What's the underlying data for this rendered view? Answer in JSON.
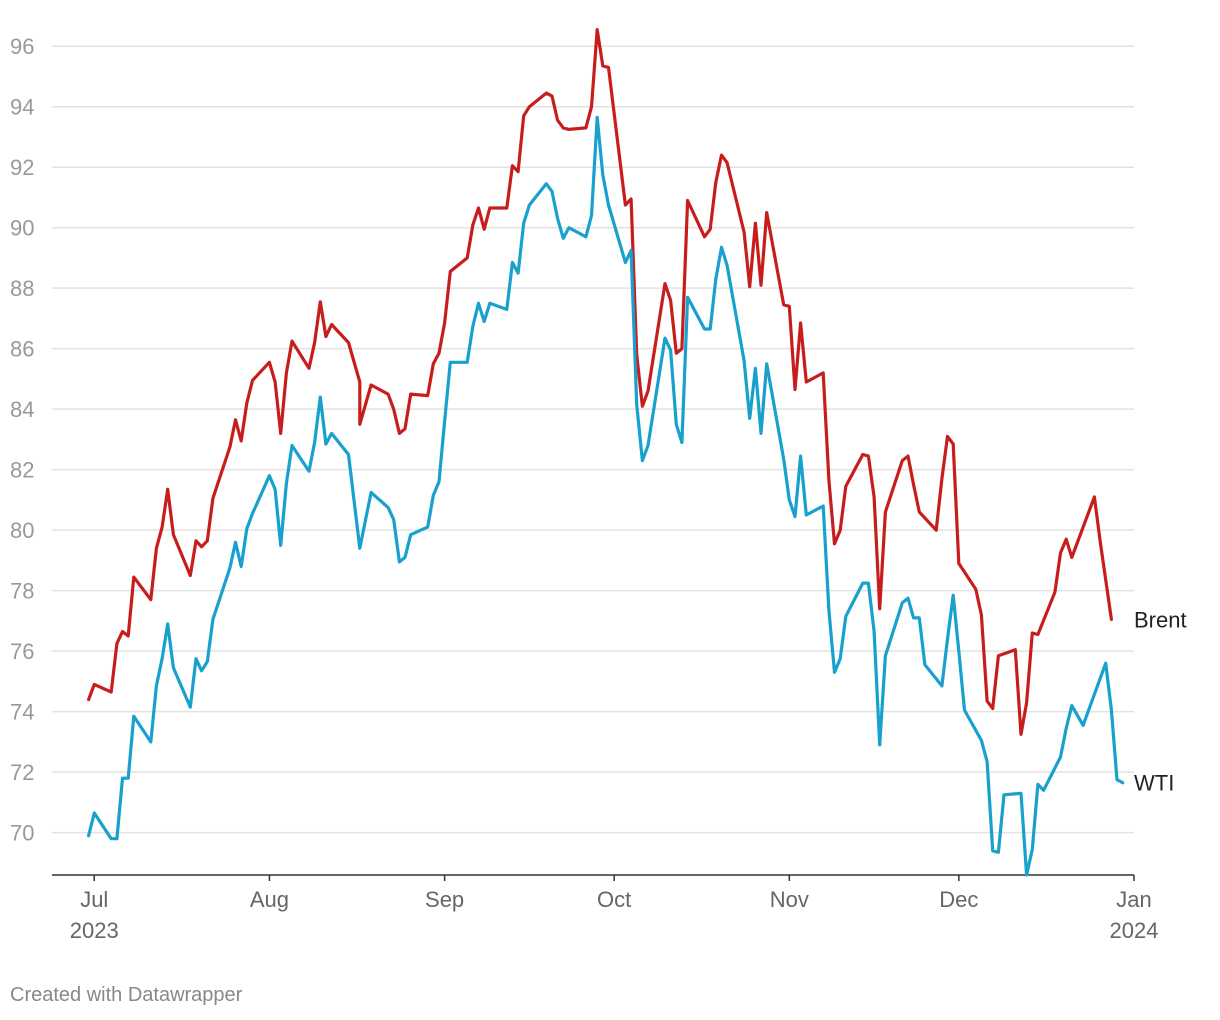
{
  "credit": "Created with Datawrapper",
  "chart_data": {
    "type": "line",
    "title": "",
    "xlabel": "",
    "ylabel": "",
    "xlim": [
      "2023-06-26",
      "2024-01-01"
    ],
    "ylim": [
      68.6,
      96.8
    ],
    "y_ticks": [
      70,
      72,
      74,
      76,
      78,
      80,
      82,
      84,
      86,
      88,
      90,
      92,
      94,
      96
    ],
    "x_ticks": [
      {
        "date": "2023-07-01",
        "label": "Jul",
        "sublabel": "2023"
      },
      {
        "date": "2023-08-01",
        "label": "Aug",
        "sublabel": ""
      },
      {
        "date": "2023-09-01",
        "label": "Sep",
        "sublabel": ""
      },
      {
        "date": "2023-10-01",
        "label": "Oct",
        "sublabel": ""
      },
      {
        "date": "2023-11-01",
        "label": "Nov",
        "sublabel": ""
      },
      {
        "date": "2023-12-01",
        "label": "Dec",
        "sublabel": ""
      },
      {
        "date": "2024-01-01",
        "label": "Jan",
        "sublabel": "2024"
      }
    ],
    "grid": true,
    "legend": "direct-labels-right",
    "series": [
      {
        "name": "Brent",
        "color": "#c71e1d",
        "points": [
          [
            "2023-06-30",
            74.4
          ],
          [
            "2023-07-01",
            74.9
          ],
          [
            "2023-07-04",
            74.65
          ],
          [
            "2023-07-05",
            76.25
          ],
          [
            "2023-07-06",
            76.65
          ],
          [
            "2023-07-07",
            76.5
          ],
          [
            "2023-07-08",
            78.45
          ],
          [
            "2023-07-11",
            77.7
          ],
          [
            "2023-07-12",
            79.4
          ],
          [
            "2023-07-13",
            80.1
          ],
          [
            "2023-07-14",
            81.35
          ],
          [
            "2023-07-15",
            79.85
          ],
          [
            "2023-07-18",
            78.5
          ],
          [
            "2023-07-19",
            79.65
          ],
          [
            "2023-07-20",
            79.45
          ],
          [
            "2023-07-21",
            79.65
          ],
          [
            "2023-07-22",
            81.05
          ],
          [
            "2023-07-25",
            82.75
          ],
          [
            "2023-07-26",
            83.65
          ],
          [
            "2023-07-27",
            82.95
          ],
          [
            "2023-07-28",
            84.2
          ],
          [
            "2023-07-29",
            84.95
          ],
          [
            "2023-08-01",
            85.55
          ],
          [
            "2023-08-02",
            84.9
          ],
          [
            "2023-08-03",
            83.2
          ],
          [
            "2023-08-04",
            85.2
          ],
          [
            "2023-08-05",
            86.25
          ],
          [
            "2023-08-08",
            85.35
          ],
          [
            "2023-08-09",
            86.2
          ],
          [
            "2023-08-10",
            87.55
          ],
          [
            "2023-08-11",
            86.4
          ],
          [
            "2023-08-12",
            86.8
          ],
          [
            "2023-08-15",
            86.2
          ],
          [
            "2023-08-17",
            84.9
          ],
          [
            "2023-08-17",
            83.5
          ],
          [
            "2023-08-19",
            84.8
          ],
          [
            "2023-08-22",
            84.5
          ],
          [
            "2023-08-23",
            84.0
          ],
          [
            "2023-08-24",
            83.2
          ],
          [
            "2023-08-25",
            83.35
          ],
          [
            "2023-08-26",
            84.5
          ],
          [
            "2023-08-29",
            84.45
          ],
          [
            "2023-08-30",
            85.5
          ],
          [
            "2023-08-31",
            85.85
          ],
          [
            "2023-09-01",
            86.85
          ],
          [
            "2023-09-02",
            88.55
          ],
          [
            "2023-09-05",
            89.0
          ],
          [
            "2023-09-06",
            90.1
          ],
          [
            "2023-09-07",
            90.65
          ],
          [
            "2023-09-08",
            89.95
          ],
          [
            "2023-09-09",
            90.65
          ],
          [
            "2023-09-12",
            90.65
          ],
          [
            "2023-09-13",
            92.05
          ],
          [
            "2023-09-14",
            91.85
          ],
          [
            "2023-09-15",
            93.7
          ],
          [
            "2023-09-16",
            94.0
          ],
          [
            "2023-09-19",
            94.45
          ],
          [
            "2023-09-20",
            94.35
          ],
          [
            "2023-09-21",
            93.55
          ],
          [
            "2023-09-22",
            93.3
          ],
          [
            "2023-09-23",
            93.25
          ],
          [
            "2023-09-26",
            93.3
          ],
          [
            "2023-09-27",
            94.0
          ],
          [
            "2023-09-28",
            96.55
          ],
          [
            "2023-09-29",
            95.35
          ],
          [
            "2023-09-30",
            95.3
          ],
          [
            "2023-10-03",
            90.75
          ],
          [
            "2023-10-04",
            90.95
          ],
          [
            "2023-10-05",
            85.8
          ],
          [
            "2023-10-06",
            84.1
          ],
          [
            "2023-10-07",
            84.6
          ],
          [
            "2023-10-10",
            88.15
          ],
          [
            "2023-10-11",
            87.6
          ],
          [
            "2023-10-12",
            85.85
          ],
          [
            "2023-10-13",
            86.0
          ],
          [
            "2023-10-14",
            90.9
          ],
          [
            "2023-10-17",
            89.7
          ],
          [
            "2023-10-18",
            89.95
          ],
          [
            "2023-10-19",
            91.5
          ],
          [
            "2023-10-20",
            92.4
          ],
          [
            "2023-10-21",
            92.15
          ],
          [
            "2023-10-24",
            89.85
          ],
          [
            "2023-10-25",
            88.05
          ],
          [
            "2023-10-26",
            90.15
          ],
          [
            "2023-10-27",
            88.1
          ],
          [
            "2023-10-28",
            90.5
          ],
          [
            "2023-10-31",
            87.45
          ],
          [
            "2023-11-01",
            87.4
          ],
          [
            "2023-11-02",
            84.65
          ],
          [
            "2023-11-03",
            86.85
          ],
          [
            "2023-11-04",
            84.9
          ],
          [
            "2023-11-07",
            85.2
          ],
          [
            "2023-11-08",
            81.65
          ],
          [
            "2023-11-09",
            79.55
          ],
          [
            "2023-11-10",
            80.0
          ],
          [
            "2023-11-11",
            81.45
          ],
          [
            "2023-11-14",
            82.5
          ],
          [
            "2023-11-15",
            82.45
          ],
          [
            "2023-11-16",
            81.1
          ],
          [
            "2023-11-17",
            77.4
          ],
          [
            "2023-11-18",
            80.6
          ],
          [
            "2023-11-21",
            82.3
          ],
          [
            "2023-11-22",
            82.45
          ],
          [
            "2023-11-23",
            81.5
          ],
          [
            "2023-11-24",
            80.6
          ],
          [
            "2023-11-27",
            80.0
          ],
          [
            "2023-11-28",
            81.7
          ],
          [
            "2023-11-29",
            83.1
          ],
          [
            "2023-11-30",
            82.85
          ],
          [
            "2023-12-01",
            78.9
          ],
          [
            "2023-12-04",
            78.05
          ],
          [
            "2023-12-05",
            77.2
          ],
          [
            "2023-12-06",
            74.35
          ],
          [
            "2023-12-07",
            74.1
          ],
          [
            "2023-12-08",
            75.85
          ],
          [
            "2023-12-11",
            76.05
          ],
          [
            "2023-12-12",
            73.25
          ],
          [
            "2023-12-13",
            74.3
          ],
          [
            "2023-12-14",
            76.6
          ],
          [
            "2023-12-15",
            76.55
          ],
          [
            "2023-12-18",
            77.95
          ],
          [
            "2023-12-19",
            79.25
          ],
          [
            "2023-12-20",
            79.7
          ],
          [
            "2023-12-21",
            79.1
          ],
          [
            "2023-12-25",
            81.1
          ],
          [
            "2023-12-26",
            79.65
          ],
          [
            "2023-12-28",
            77.05
          ]
        ]
      },
      {
        "name": "WTI",
        "color": "#18a1cd",
        "points": [
          [
            "2023-06-30",
            69.9
          ],
          [
            "2023-07-01",
            70.65
          ],
          [
            "2023-07-04",
            69.8
          ],
          [
            "2023-07-05",
            69.8
          ],
          [
            "2023-07-06",
            71.8
          ],
          [
            "2023-07-07",
            71.8
          ],
          [
            "2023-07-08",
            73.85
          ],
          [
            "2023-07-11",
            73.0
          ],
          [
            "2023-07-12",
            74.85
          ],
          [
            "2023-07-13",
            75.75
          ],
          [
            "2023-07-14",
            76.9
          ],
          [
            "2023-07-15",
            75.45
          ],
          [
            "2023-07-18",
            74.15
          ],
          [
            "2023-07-19",
            75.75
          ],
          [
            "2023-07-20",
            75.35
          ],
          [
            "2023-07-21",
            75.65
          ],
          [
            "2023-07-22",
            77.05
          ],
          [
            "2023-07-25",
            78.75
          ],
          [
            "2023-07-26",
            79.6
          ],
          [
            "2023-07-27",
            78.8
          ],
          [
            "2023-07-28",
            80.05
          ],
          [
            "2023-07-29",
            80.55
          ],
          [
            "2023-08-01",
            81.8
          ],
          [
            "2023-08-02",
            81.35
          ],
          [
            "2023-08-03",
            79.5
          ],
          [
            "2023-08-04",
            81.55
          ],
          [
            "2023-08-05",
            82.8
          ],
          [
            "2023-08-08",
            81.95
          ],
          [
            "2023-08-09",
            82.9
          ],
          [
            "2023-08-10",
            84.4
          ],
          [
            "2023-08-11",
            82.85
          ],
          [
            "2023-08-12",
            83.2
          ],
          [
            "2023-08-15",
            82.5
          ],
          [
            "2023-08-17",
            79.4
          ],
          [
            "2023-08-19",
            81.25
          ],
          [
            "2023-08-22",
            80.75
          ],
          [
            "2023-08-23",
            80.35
          ],
          [
            "2023-08-24",
            78.95
          ],
          [
            "2023-08-25",
            79.1
          ],
          [
            "2023-08-26",
            79.85
          ],
          [
            "2023-08-29",
            80.1
          ],
          [
            "2023-08-30",
            81.15
          ],
          [
            "2023-08-31",
            81.6
          ],
          [
            "2023-09-01",
            83.6
          ],
          [
            "2023-09-02",
            85.55
          ],
          [
            "2023-09-05",
            85.55
          ],
          [
            "2023-09-06",
            86.75
          ],
          [
            "2023-09-07",
            87.5
          ],
          [
            "2023-09-08",
            86.9
          ],
          [
            "2023-09-09",
            87.5
          ],
          [
            "2023-09-12",
            87.3
          ],
          [
            "2023-09-13",
            88.85
          ],
          [
            "2023-09-14",
            88.5
          ],
          [
            "2023-09-15",
            90.15
          ],
          [
            "2023-09-16",
            90.75
          ],
          [
            "2023-09-19",
            91.45
          ],
          [
            "2023-09-20",
            91.2
          ],
          [
            "2023-09-21",
            90.3
          ],
          [
            "2023-09-22",
            89.65
          ],
          [
            "2023-09-23",
            90.0
          ],
          [
            "2023-09-26",
            89.7
          ],
          [
            "2023-09-27",
            90.4
          ],
          [
            "2023-09-28",
            93.65
          ],
          [
            "2023-09-29",
            91.75
          ],
          [
            "2023-09-30",
            90.75
          ],
          [
            "2023-10-03",
            88.85
          ],
          [
            "2023-10-04",
            89.25
          ],
          [
            "2023-10-05",
            84.15
          ],
          [
            "2023-10-06",
            82.3
          ],
          [
            "2023-10-07",
            82.8
          ],
          [
            "2023-10-10",
            86.35
          ],
          [
            "2023-10-11",
            85.95
          ],
          [
            "2023-10-12",
            83.5
          ],
          [
            "2023-10-13",
            82.9
          ],
          [
            "2023-10-14",
            87.7
          ],
          [
            "2023-10-17",
            86.65
          ],
          [
            "2023-10-18",
            86.65
          ],
          [
            "2023-10-19",
            88.3
          ],
          [
            "2023-10-20",
            89.35
          ],
          [
            "2023-10-21",
            88.75
          ],
          [
            "2023-10-24",
            85.6
          ],
          [
            "2023-10-25",
            83.7
          ],
          [
            "2023-10-26",
            85.35
          ],
          [
            "2023-10-27",
            83.2
          ],
          [
            "2023-10-28",
            85.5
          ],
          [
            "2023-10-31",
            82.35
          ],
          [
            "2023-11-01",
            81.0
          ],
          [
            "2023-11-02",
            80.45
          ],
          [
            "2023-11-03",
            82.45
          ],
          [
            "2023-11-04",
            80.5
          ],
          [
            "2023-11-07",
            80.8
          ],
          [
            "2023-11-08",
            77.35
          ],
          [
            "2023-11-09",
            75.3
          ],
          [
            "2023-11-10",
            75.75
          ],
          [
            "2023-11-11",
            77.15
          ],
          [
            "2023-11-14",
            78.25
          ],
          [
            "2023-11-15",
            78.25
          ],
          [
            "2023-11-16",
            76.65
          ],
          [
            "2023-11-17",
            72.9
          ],
          [
            "2023-11-18",
            75.85
          ],
          [
            "2023-11-21",
            77.6
          ],
          [
            "2023-11-22",
            77.75
          ],
          [
            "2023-11-23",
            77.1
          ],
          [
            "2023-11-24",
            77.1
          ],
          [
            "2023-11-25",
            75.55
          ],
          [
            "2023-11-28",
            74.85
          ],
          [
            "2023-11-29",
            76.4
          ],
          [
            "2023-11-30",
            77.85
          ],
          [
            "2023-12-01",
            76.0
          ],
          [
            "2023-12-02",
            74.05
          ],
          [
            "2023-12-05",
            73.05
          ],
          [
            "2023-12-06",
            72.35
          ],
          [
            "2023-12-07",
            69.4
          ],
          [
            "2023-12-08",
            69.35
          ],
          [
            "2023-12-09",
            71.25
          ],
          [
            "2023-12-12",
            71.3
          ],
          [
            "2023-12-13",
            68.6
          ],
          [
            "2023-12-14",
            69.45
          ],
          [
            "2023-12-15",
            71.6
          ],
          [
            "2023-12-16",
            71.4
          ],
          [
            "2023-12-19",
            72.5
          ],
          [
            "2023-12-20",
            73.45
          ],
          [
            "2023-12-21",
            74.2
          ],
          [
            "2023-12-23",
            73.55
          ],
          [
            "2023-12-27",
            75.6
          ],
          [
            "2023-12-28",
            74.05
          ],
          [
            "2023-12-29",
            71.75
          ],
          [
            "2023-12-30",
            71.65
          ]
        ]
      }
    ]
  }
}
